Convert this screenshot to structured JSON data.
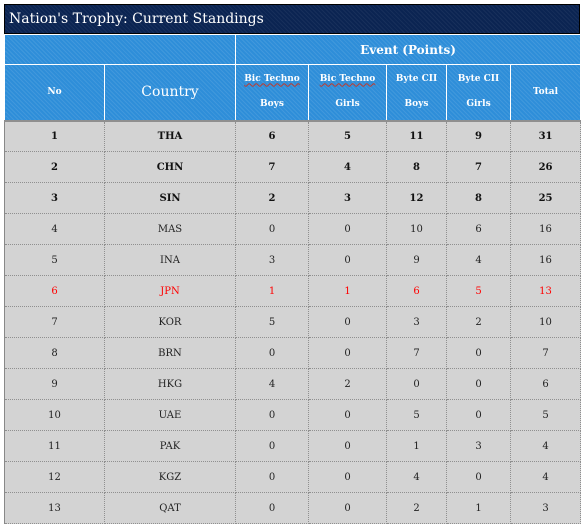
{
  "title": "Nation's Trophy: Current Standings",
  "headers": {
    "event_points": "Event (Points)",
    "no": "No",
    "country": "Country",
    "events": [
      {
        "line1": "Bic Techno",
        "line2": "Boys"
      },
      {
        "line1": "Bic Techno",
        "line2": "Girls"
      },
      {
        "line1": "Byte CII",
        "line2": "Boys"
      },
      {
        "line1": "Byte CII",
        "line2": "Girls"
      }
    ],
    "total": "Total"
  },
  "rows": [
    {
      "no": "1",
      "country": "THA",
      "e1": "6",
      "e2": "5",
      "e3": "11",
      "e4": "9",
      "total": "31",
      "style": "bold"
    },
    {
      "no": "2",
      "country": "CHN",
      "e1": "7",
      "e2": "4",
      "e3": "8",
      "e4": "7",
      "total": "26",
      "style": "bold"
    },
    {
      "no": "3",
      "country": "SIN",
      "e1": "2",
      "e2": "3",
      "e3": "12",
      "e4": "8",
      "total": "25",
      "style": "bold"
    },
    {
      "no": "4",
      "country": "MAS",
      "e1": "0",
      "e2": "0",
      "e3": "10",
      "e4": "6",
      "total": "16",
      "style": "normal"
    },
    {
      "no": "5",
      "country": "INA",
      "e1": "3",
      "e2": "0",
      "e3": "9",
      "e4": "4",
      "total": "16",
      "style": "normal"
    },
    {
      "no": "6",
      "country": "JPN",
      "e1": "1",
      "e2": "1",
      "e3": "6",
      "e4": "5",
      "total": "13",
      "style": "red"
    },
    {
      "no": "7",
      "country": "KOR",
      "e1": "5",
      "e2": "0",
      "e3": "3",
      "e4": "2",
      "total": "10",
      "style": "normal"
    },
    {
      "no": "8",
      "country": "BRN",
      "e1": "0",
      "e2": "0",
      "e3": "7",
      "e4": "0",
      "total": "7",
      "style": "normal"
    },
    {
      "no": "9",
      "country": "HKG",
      "e1": "4",
      "e2": "2",
      "e3": "0",
      "e4": "0",
      "total": "6",
      "style": "normal"
    },
    {
      "no": "10",
      "country": "UAE",
      "e1": "0",
      "e2": "0",
      "e3": "5",
      "e4": "0",
      "total": "5",
      "style": "normal"
    },
    {
      "no": "11",
      "country": "PAK",
      "e1": "0",
      "e2": "0",
      "e3": "1",
      "e4": "3",
      "total": "4",
      "style": "normal"
    },
    {
      "no": "12",
      "country": "KGZ",
      "e1": "0",
      "e2": "0",
      "e3": "4",
      "e4": "0",
      "total": "4",
      "style": "normal"
    },
    {
      "no": "13",
      "country": "QAT",
      "e1": "0",
      "e2": "0",
      "e3": "2",
      "e4": "1",
      "total": "3",
      "style": "normal"
    }
  ],
  "colors": {
    "title_bg": "#0b2452",
    "header_bg": "#2e8ed9",
    "row_bg": "#d3d3d3",
    "highlight": "#ff0000"
  }
}
